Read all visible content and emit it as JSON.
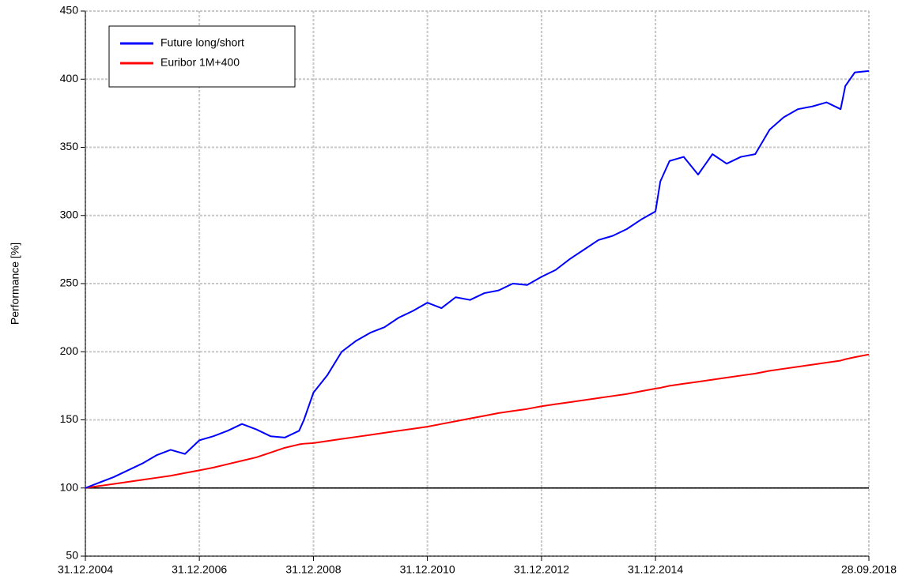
{
  "chart_data": {
    "type": "line",
    "y_label": "Performance [%]",
    "x": [
      "2004-12-31",
      "2005-03-31",
      "2005-06-30",
      "2005-09-30",
      "2005-12-31",
      "2006-03-31",
      "2006-06-30",
      "2006-09-30",
      "2006-12-31",
      "2007-03-31",
      "2007-06-30",
      "2007-09-30",
      "2007-12-31",
      "2008-03-31",
      "2008-06-30",
      "2008-09-30",
      "2008-10-31",
      "2008-12-31",
      "2009-03-31",
      "2009-06-30",
      "2009-09-30",
      "2009-12-31",
      "2010-03-31",
      "2010-06-30",
      "2010-09-30",
      "2010-12-31",
      "2011-03-31",
      "2011-06-30",
      "2011-09-30",
      "2011-12-31",
      "2012-03-31",
      "2012-06-30",
      "2012-09-30",
      "2012-12-31",
      "2013-03-31",
      "2013-06-30",
      "2013-09-30",
      "2013-12-31",
      "2014-03-31",
      "2014-06-30",
      "2014-09-30",
      "2014-12-31",
      "2015-01-31",
      "2015-03-31",
      "2015-06-30",
      "2015-09-30",
      "2015-12-31",
      "2016-03-31",
      "2016-06-30",
      "2016-09-30",
      "2016-12-31",
      "2017-03-31",
      "2017-06-30",
      "2017-09-30",
      "2017-12-31",
      "2018-03-31",
      "2018-04-30",
      "2018-06-30",
      "2018-09-28"
    ],
    "series": [
      {
        "name": "Future long/short",
        "color": "#0000ff",
        "values": [
          100,
          104,
          108,
          113,
          118,
          124,
          128,
          125,
          135,
          138,
          142,
          147,
          143,
          138,
          137,
          142,
          150,
          170,
          183,
          200,
          208,
          214,
          218,
          225,
          230,
          236,
          232,
          240,
          238,
          243,
          245,
          250,
          249,
          255,
          260,
          268,
          275,
          282,
          285,
          290,
          297,
          303,
          325,
          340,
          343,
          330,
          345,
          338,
          343,
          345,
          363,
          372,
          378,
          380,
          383,
          378,
          395,
          405,
          406
        ]
      },
      {
        "name": "Euribor 1M+400",
        "color": "#ff0000",
        "values": [
          100,
          101.5,
          103,
          104.5,
          106,
          107.5,
          109,
          111,
          113,
          115,
          117.5,
          120,
          122.5,
          126,
          129.5,
          132,
          132.5,
          133,
          134.5,
          136,
          137.5,
          139,
          140.5,
          142,
          143.5,
          145,
          147,
          149,
          151,
          153,
          155,
          156.5,
          158,
          160,
          161.5,
          163,
          164.5,
          166,
          167.5,
          169,
          171,
          173,
          173.5,
          175,
          176.5,
          178,
          179.5,
          181,
          182.5,
          184,
          186,
          187.5,
          189,
          190.5,
          192,
          193.5,
          194.5,
          196,
          198
        ]
      }
    ],
    "reference_line": 100,
    "ylim": [
      50,
      450
    ],
    "yticks": [
      50,
      100,
      150,
      200,
      250,
      300,
      350,
      400,
      450
    ],
    "xlim": [
      "2004-12-31",
      "2018-09-28"
    ],
    "xticks": [
      {
        "value": "2004-12-31",
        "label": "31.12.2004"
      },
      {
        "value": "2006-12-31",
        "label": "31.12.2006"
      },
      {
        "value": "2008-12-31",
        "label": "31.12.2008"
      },
      {
        "value": "2010-12-31",
        "label": "31.12.2010"
      },
      {
        "value": "2012-12-31",
        "label": "31.12.2012"
      },
      {
        "value": "2014-12-31",
        "label": "31.12.2014"
      },
      {
        "value": "2018-09-28",
        "label": "28.09.2018"
      }
    ],
    "grid": true,
    "legend": "upper left"
  }
}
